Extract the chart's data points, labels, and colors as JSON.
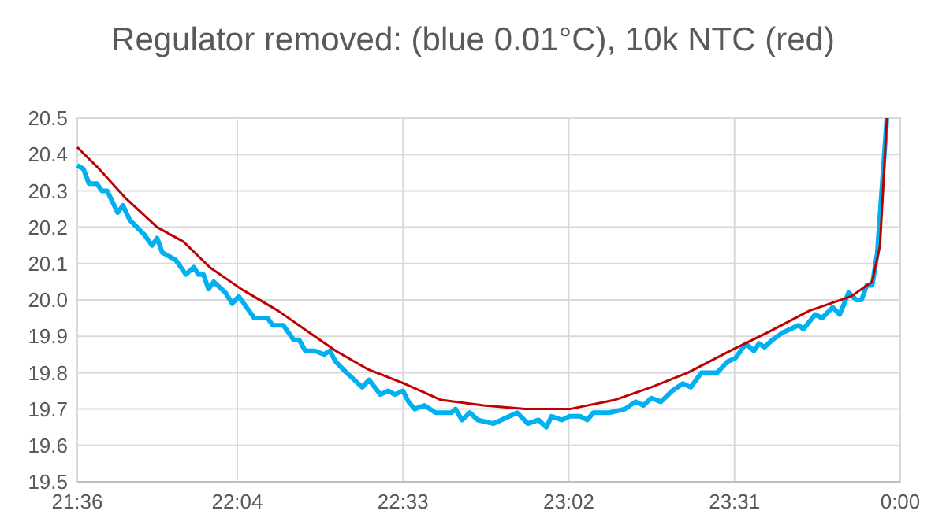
{
  "chart_data": {
    "type": "line",
    "title": "Regulator removed: (blue 0.01°C), 10k NTC (red)",
    "xlim": [
      21.6,
      24
    ],
    "xticks": [
      {
        "value": 21.6,
        "label": "21:36"
      },
      {
        "value": 22.0667,
        "label": "22:04"
      },
      {
        "value": 22.55,
        "label": "22:33"
      },
      {
        "value": 23.0333,
        "label": "23:02"
      },
      {
        "value": 23.5167,
        "label": "23:31"
      },
      {
        "value": 24,
        "label": "0:00"
      }
    ],
    "ylim": [
      19.5,
      20.5
    ],
    "yticks": [
      {
        "value": 19.5,
        "label": "19.5"
      },
      {
        "value": 19.6,
        "label": "19.6"
      },
      {
        "value": 19.7,
        "label": "19.7"
      },
      {
        "value": 19.8,
        "label": "19.8"
      },
      {
        "value": 19.9,
        "label": "19.9"
      },
      {
        "value": 20.0,
        "label": "20.0"
      },
      {
        "value": 20.1,
        "label": "20.1"
      },
      {
        "value": 20.2,
        "label": "20.2"
      },
      {
        "value": 20.3,
        "label": "20.3"
      },
      {
        "value": 20.4,
        "label": "20.4"
      },
      {
        "value": 20.5,
        "label": "20.5"
      }
    ],
    "grid": true,
    "marker": "none",
    "line_style": "solid",
    "series": [
      {
        "color": "#00b0f0",
        "x": [
          21.6,
          21.618,
          21.634,
          21.657,
          21.672,
          21.687,
          21.718,
          21.733,
          21.753,
          21.795,
          21.818,
          21.833,
          21.848,
          21.887,
          21.917,
          21.94,
          21.953,
          21.968,
          21.983,
          21.998,
          22.032,
          22.052,
          22.071,
          22.086,
          22.116,
          22.155,
          22.17,
          22.201,
          22.231,
          22.247,
          22.265,
          22.293,
          22.32,
          22.336,
          22.354,
          22.385,
          22.431,
          22.451,
          22.484,
          22.507,
          22.526,
          22.55,
          22.566,
          22.584,
          22.612,
          22.645,
          22.691,
          22.703,
          22.722,
          22.745,
          22.768,
          22.814,
          22.883,
          22.914,
          22.945,
          22.968,
          22.983,
          23.013,
          23.036,
          23.067,
          23.087,
          23.105,
          23.151,
          23.197,
          23.228,
          23.251,
          23.274,
          23.302,
          23.335,
          23.366,
          23.389,
          23.42,
          23.466,
          23.496,
          23.519,
          23.55,
          23.573,
          23.588,
          23.604,
          23.627,
          23.657,
          23.703,
          23.718,
          23.752,
          23.772,
          23.803,
          23.823,
          23.841,
          23.849,
          23.872,
          23.887,
          23.902,
          23.918,
          23.933,
          23.961
        ],
        "values": [
          20.37,
          20.36,
          20.32,
          20.32,
          20.3,
          20.3,
          20.24,
          20.26,
          20.22,
          20.18,
          20.15,
          20.17,
          20.13,
          20.11,
          20.07,
          20.09,
          20.07,
          20.07,
          20.03,
          20.05,
          20.02,
          19.99,
          20.01,
          19.99,
          19.95,
          19.95,
          19.93,
          19.93,
          19.89,
          19.89,
          19.86,
          19.86,
          19.85,
          19.86,
          19.83,
          19.8,
          19.76,
          19.78,
          19.74,
          19.75,
          19.74,
          19.75,
          19.72,
          19.7,
          19.71,
          19.69,
          19.69,
          19.7,
          19.67,
          19.69,
          19.67,
          19.66,
          19.69,
          19.66,
          19.67,
          19.65,
          19.68,
          19.67,
          19.68,
          19.68,
          19.67,
          19.69,
          19.69,
          19.7,
          19.72,
          19.71,
          19.73,
          19.72,
          19.75,
          19.77,
          19.76,
          19.8,
          19.8,
          19.83,
          19.84,
          19.88,
          19.86,
          19.88,
          19.87,
          19.89,
          19.91,
          19.93,
          19.92,
          19.96,
          19.95,
          19.98,
          19.96,
          20.0,
          20.02,
          20.0,
          20.0,
          20.04,
          20.04,
          20.13,
          20.5
        ]
      },
      {
        "color": "#c00000",
        "x": [
          21.6,
          21.664,
          21.741,
          21.833,
          21.91,
          21.986,
          22.078,
          22.186,
          22.262,
          22.354,
          22.446,
          22.554,
          22.661,
          22.784,
          22.906,
          23.036,
          23.167,
          23.274,
          23.381,
          23.504,
          23.612,
          23.734,
          23.857,
          23.918,
          23.941,
          23.961
        ],
        "values": [
          20.42,
          20.36,
          20.28,
          20.2,
          20.16,
          20.09,
          20.03,
          19.97,
          19.92,
          19.86,
          19.81,
          19.77,
          19.725,
          19.71,
          19.7,
          19.7,
          19.725,
          19.76,
          19.8,
          19.86,
          19.91,
          19.97,
          20.01,
          20.05,
          20.15,
          20.5
        ]
      }
    ]
  }
}
